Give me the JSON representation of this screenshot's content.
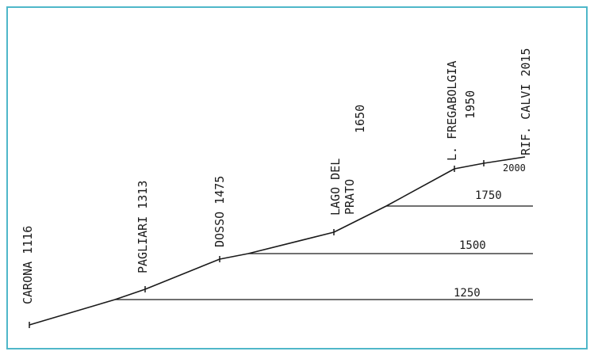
{
  "diagram": {
    "type": "elevation-profile",
    "colors": {
      "frame": "#4fb7c9",
      "ink": "#1a1a1a",
      "paper": "#ffffff"
    },
    "waypoints": [
      {
        "label": "CARONA 1116",
        "elevation": 1116
      },
      {
        "label": "PAGLIARI 1313",
        "elevation": 1313
      },
      {
        "label": "DOSSO 1475",
        "elevation": 1475
      },
      {
        "label_lines": [
          "LAGO DEL",
          "PRATO"
        ],
        "elevation_label": "1650",
        "elevation": 1650
      },
      {
        "label_lines": [
          "L. FREGABOLGIA",
          "1950"
        ],
        "elevation": 1950
      },
      {
        "label": "RIF. CALVI 2015",
        "elevation": 2015
      }
    ],
    "contours": [
      {
        "label": "1250",
        "elevation": 1250
      },
      {
        "label": "1500",
        "elevation": 1500
      },
      {
        "label": "1750",
        "elevation": 1750
      },
      {
        "label": "2000",
        "elevation": 2000
      }
    ]
  }
}
